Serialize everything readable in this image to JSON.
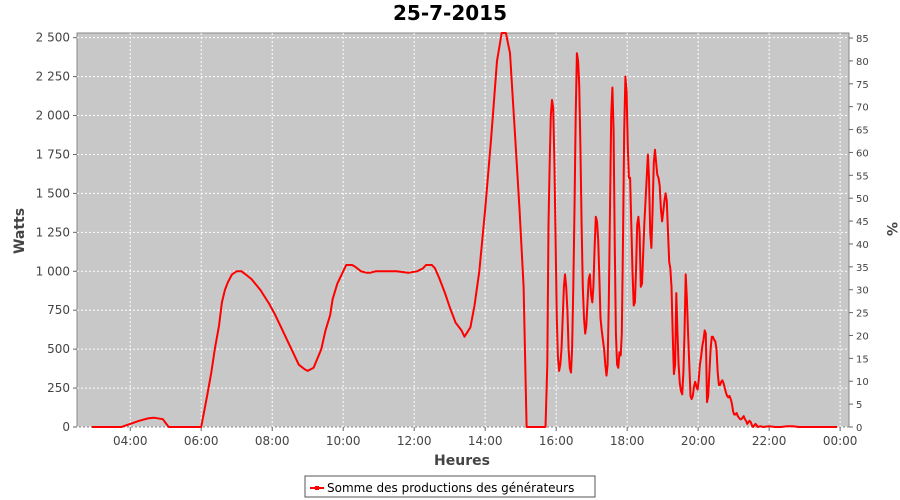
{
  "chart_data": {
    "type": "line",
    "title": "25-7-2015",
    "xlabel": "Heures",
    "ylabel": "Watts",
    "y2label": "%",
    "x_ticks": [
      "04:00",
      "06:00",
      "08:00",
      "10:00",
      "12:00",
      "14:00",
      "16:00",
      "18:00",
      "20:00",
      "22:00",
      "00:00"
    ],
    "y_ticks": [
      "0",
      "250",
      "500",
      "750",
      "1 000",
      "1 250",
      "1 500",
      "1 750",
      "2 000",
      "2 250",
      "2 500"
    ],
    "y2_ticks": [
      "0",
      "5",
      "10",
      "15",
      "20",
      "25",
      "30",
      "35",
      "40",
      "45",
      "50",
      "55",
      "60",
      "65",
      "70",
      "75",
      "80",
      "85"
    ],
    "xlim": [
      "02:30",
      "00:15"
    ],
    "ylim": [
      0,
      2530
    ],
    "y2lim": [
      0,
      86.1
    ],
    "grid": true,
    "legend_position": "bottom",
    "colors": {
      "series": "#ff0000",
      "plot_bg": "#c8c8c8",
      "grid": "#ffffff"
    },
    "series": [
      {
        "name": "Somme des productions des  générateurs",
        "points": [
          [
            "02:55",
            0
          ],
          [
            "03:45",
            0
          ],
          [
            "04:00",
            20
          ],
          [
            "04:15",
            40
          ],
          [
            "04:30",
            55
          ],
          [
            "04:40",
            60
          ],
          [
            "04:55",
            50
          ],
          [
            "05:05",
            0
          ],
          [
            "06:00",
            0
          ],
          [
            "06:10",
            200
          ],
          [
            "06:17",
            350
          ],
          [
            "06:23",
            500
          ],
          [
            "06:30",
            650
          ],
          [
            "06:35",
            800
          ],
          [
            "06:40",
            880
          ],
          [
            "06:45",
            930
          ],
          [
            "06:52",
            980
          ],
          [
            "07:00",
            1000
          ],
          [
            "07:08",
            1000
          ],
          [
            "07:15",
            980
          ],
          [
            "07:25",
            950
          ],
          [
            "07:40",
            880
          ],
          [
            "07:55",
            790
          ],
          [
            "08:05",
            720
          ],
          [
            "08:15",
            640
          ],
          [
            "08:25",
            560
          ],
          [
            "08:35",
            480
          ],
          [
            "08:45",
            400
          ],
          [
            "08:55",
            370
          ],
          [
            "09:00",
            360
          ],
          [
            "09:10",
            380
          ],
          [
            "09:23",
            500
          ],
          [
            "09:30",
            620
          ],
          [
            "09:38",
            720
          ],
          [
            "09:42",
            820
          ],
          [
            "09:50",
            920
          ],
          [
            "10:00",
            1000
          ],
          [
            "10:05",
            1040
          ],
          [
            "10:15",
            1040
          ],
          [
            "10:20",
            1030
          ],
          [
            "10:30",
            1000
          ],
          [
            "10:40",
            990
          ],
          [
            "10:45",
            990
          ],
          [
            "10:55",
            1000
          ],
          [
            "11:15",
            1000
          ],
          [
            "11:30",
            1000
          ],
          [
            "11:50",
            990
          ],
          [
            "12:05",
            1000
          ],
          [
            "12:15",
            1020
          ],
          [
            "12:20",
            1040
          ],
          [
            "12:30",
            1040
          ],
          [
            "12:35",
            1020
          ],
          [
            "12:42",
            960
          ],
          [
            "12:52",
            860
          ],
          [
            "13:00",
            770
          ],
          [
            "13:10",
            670
          ],
          [
            "13:20",
            620
          ],
          [
            "13:25",
            580
          ],
          [
            "13:35",
            640
          ],
          [
            "13:42",
            780
          ],
          [
            "13:50",
            1000
          ],
          [
            "14:00",
            1400
          ],
          [
            "14:10",
            1850
          ],
          [
            "14:20",
            2350
          ],
          [
            "14:28",
            2530
          ],
          [
            "14:35",
            2530
          ],
          [
            "14:42",
            2400
          ],
          [
            "14:50",
            1900
          ],
          [
            "14:58",
            1400
          ],
          [
            "15:05",
            900
          ],
          [
            "15:10",
            0
          ],
          [
            "15:42",
            0
          ],
          [
            "15:45",
            400
          ],
          [
            "15:47",
            1300
          ],
          [
            "15:49",
            1700
          ],
          [
            "15:51",
            2000
          ],
          [
            "15:53",
            2100
          ],
          [
            "15:55",
            2050
          ],
          [
            "15:57",
            1700
          ],
          [
            "15:59",
            1200
          ],
          [
            "16:01",
            700
          ],
          [
            "16:03",
            450
          ],
          [
            "16:05",
            360
          ],
          [
            "16:07",
            400
          ],
          [
            "16:09",
            500
          ],
          [
            "16:11",
            700
          ],
          [
            "16:13",
            900
          ],
          [
            "16:15",
            980
          ],
          [
            "16:17",
            900
          ],
          [
            "16:19",
            750
          ],
          [
            "16:21",
            500
          ],
          [
            "16:23",
            380
          ],
          [
            "16:25",
            350
          ],
          [
            "16:27",
            500
          ],
          [
            "16:29",
            900
          ],
          [
            "16:31",
            1400
          ],
          [
            "16:33",
            2000
          ],
          [
            "16:35",
            2400
          ],
          [
            "16:37",
            2350
          ],
          [
            "16:39",
            2200
          ],
          [
            "16:41",
            1800
          ],
          [
            "16:43",
            1300
          ],
          [
            "16:45",
            900
          ],
          [
            "16:47",
            700
          ],
          [
            "16:49",
            600
          ],
          [
            "16:51",
            650
          ],
          [
            "16:53",
            800
          ],
          [
            "16:55",
            950
          ],
          [
            "16:57",
            980
          ],
          [
            "16:59",
            850
          ],
          [
            "17:01",
            800
          ],
          [
            "17:03",
            900
          ],
          [
            "17:05",
            1150
          ],
          [
            "17:07",
            1350
          ],
          [
            "17:09",
            1320
          ],
          [
            "17:11",
            1200
          ],
          [
            "17:13",
            950
          ],
          [
            "17:15",
            700
          ],
          [
            "17:17",
            620
          ],
          [
            "17:19",
            560
          ],
          [
            "17:21",
            500
          ],
          [
            "17:23",
            400
          ],
          [
            "17:25",
            330
          ],
          [
            "17:27",
            400
          ],
          [
            "17:29",
            800
          ],
          [
            "17:31",
            1400
          ],
          [
            "17:33",
            2000
          ],
          [
            "17:35",
            2180
          ],
          [
            "17:37",
            1900
          ],
          [
            "17:39",
            1200
          ],
          [
            "17:41",
            600
          ],
          [
            "17:43",
            400
          ],
          [
            "17:45",
            380
          ],
          [
            "17:47",
            480
          ],
          [
            "17:49",
            460
          ],
          [
            "17:51",
            600
          ],
          [
            "17:53",
            1200
          ],
          [
            "17:55",
            1900
          ],
          [
            "17:57",
            2250
          ],
          [
            "17:59",
            2150
          ],
          [
            "18:01",
            1800
          ],
          [
            "18:03",
            1600
          ],
          [
            "18:05",
            1600
          ],
          [
            "18:07",
            1300
          ],
          [
            "18:09",
            1000
          ],
          [
            "18:11",
            780
          ],
          [
            "18:13",
            800
          ],
          [
            "18:15",
            1000
          ],
          [
            "18:17",
            1300
          ],
          [
            "18:19",
            1350
          ],
          [
            "18:21",
            1250
          ],
          [
            "18:23",
            900
          ],
          [
            "18:25",
            920
          ],
          [
            "18:27",
            1100
          ],
          [
            "18:29",
            1300
          ],
          [
            "18:31",
            1450
          ],
          [
            "18:33",
            1600
          ],
          [
            "18:35",
            1750
          ],
          [
            "18:37",
            1600
          ],
          [
            "18:39",
            1250
          ],
          [
            "18:41",
            1150
          ],
          [
            "18:43",
            1400
          ],
          [
            "18:45",
            1700
          ],
          [
            "18:47",
            1780
          ],
          [
            "18:49",
            1700
          ],
          [
            "18:51",
            1620
          ],
          [
            "18:53",
            1600
          ],
          [
            "18:55",
            1550
          ],
          [
            "18:57",
            1400
          ],
          [
            "18:59",
            1320
          ],
          [
            "19:01",
            1380
          ],
          [
            "19:03",
            1450
          ],
          [
            "19:05",
            1500
          ],
          [
            "19:07",
            1450
          ],
          [
            "19:09",
            1250
          ],
          [
            "19:11",
            1060
          ],
          [
            "19:13",
            1020
          ],
          [
            "19:15",
            900
          ],
          [
            "19:17",
            600
          ],
          [
            "19:19",
            340
          ],
          [
            "19:21",
            400
          ],
          [
            "19:23",
            860
          ],
          [
            "19:25",
            620
          ],
          [
            "19:27",
            400
          ],
          [
            "19:29",
            280
          ],
          [
            "19:31",
            230
          ],
          [
            "19:33",
            210
          ],
          [
            "19:35",
            350
          ],
          [
            "19:37",
            600
          ],
          [
            "19:39",
            980
          ],
          [
            "19:41",
            820
          ],
          [
            "19:43",
            600
          ],
          [
            "19:45",
            400
          ],
          [
            "19:47",
            200
          ],
          [
            "19:49",
            180
          ],
          [
            "19:51",
            200
          ],
          [
            "19:53",
            260
          ],
          [
            "19:55",
            290
          ],
          [
            "19:57",
            260
          ],
          [
            "19:59",
            240
          ],
          [
            "20:01",
            300
          ],
          [
            "20:03",
            400
          ],
          [
            "20:05",
            450
          ],
          [
            "20:07",
            520
          ],
          [
            "20:09",
            560
          ],
          [
            "20:11",
            620
          ],
          [
            "20:13",
            600
          ],
          [
            "20:15",
            160
          ],
          [
            "20:17",
            200
          ],
          [
            "20:19",
            350
          ],
          [
            "20:21",
            500
          ],
          [
            "20:23",
            580
          ],
          [
            "20:25",
            580
          ],
          [
            "20:27",
            560
          ],
          [
            "20:29",
            550
          ],
          [
            "20:31",
            500
          ],
          [
            "20:33",
            350
          ],
          [
            "20:35",
            270
          ],
          [
            "20:37",
            270
          ],
          [
            "20:39",
            290
          ],
          [
            "20:41",
            300
          ],
          [
            "20:43",
            280
          ],
          [
            "20:45",
            250
          ],
          [
            "20:47",
            220
          ],
          [
            "20:49",
            200
          ],
          [
            "20:51",
            190
          ],
          [
            "20:53",
            200
          ],
          [
            "20:55",
            180
          ],
          [
            "20:57",
            150
          ],
          [
            "20:59",
            100
          ],
          [
            "21:01",
            80
          ],
          [
            "21:03",
            80
          ],
          [
            "21:05",
            90
          ],
          [
            "21:07",
            70
          ],
          [
            "21:09",
            60
          ],
          [
            "21:11",
            50
          ],
          [
            "21:13",
            50
          ],
          [
            "21:15",
            60
          ],
          [
            "21:17",
            70
          ],
          [
            "21:19",
            50
          ],
          [
            "21:21",
            40
          ],
          [
            "21:23",
            20
          ],
          [
            "21:25",
            30
          ],
          [
            "21:27",
            40
          ],
          [
            "21:29",
            30
          ],
          [
            "21:31",
            10
          ],
          [
            "21:33",
            0
          ],
          [
            "21:35",
            10
          ],
          [
            "21:37",
            20
          ],
          [
            "21:39",
            10
          ],
          [
            "21:41",
            0
          ],
          [
            "21:45",
            5
          ],
          [
            "21:50",
            0
          ],
          [
            "22:00",
            5
          ],
          [
            "22:10",
            0
          ],
          [
            "22:20",
            0
          ],
          [
            "22:30",
            5
          ],
          [
            "22:40",
            5
          ],
          [
            "22:50",
            0
          ],
          [
            "23:10",
            0
          ],
          [
            "23:30",
            0
          ],
          [
            "23:55",
            0
          ]
        ]
      }
    ]
  }
}
